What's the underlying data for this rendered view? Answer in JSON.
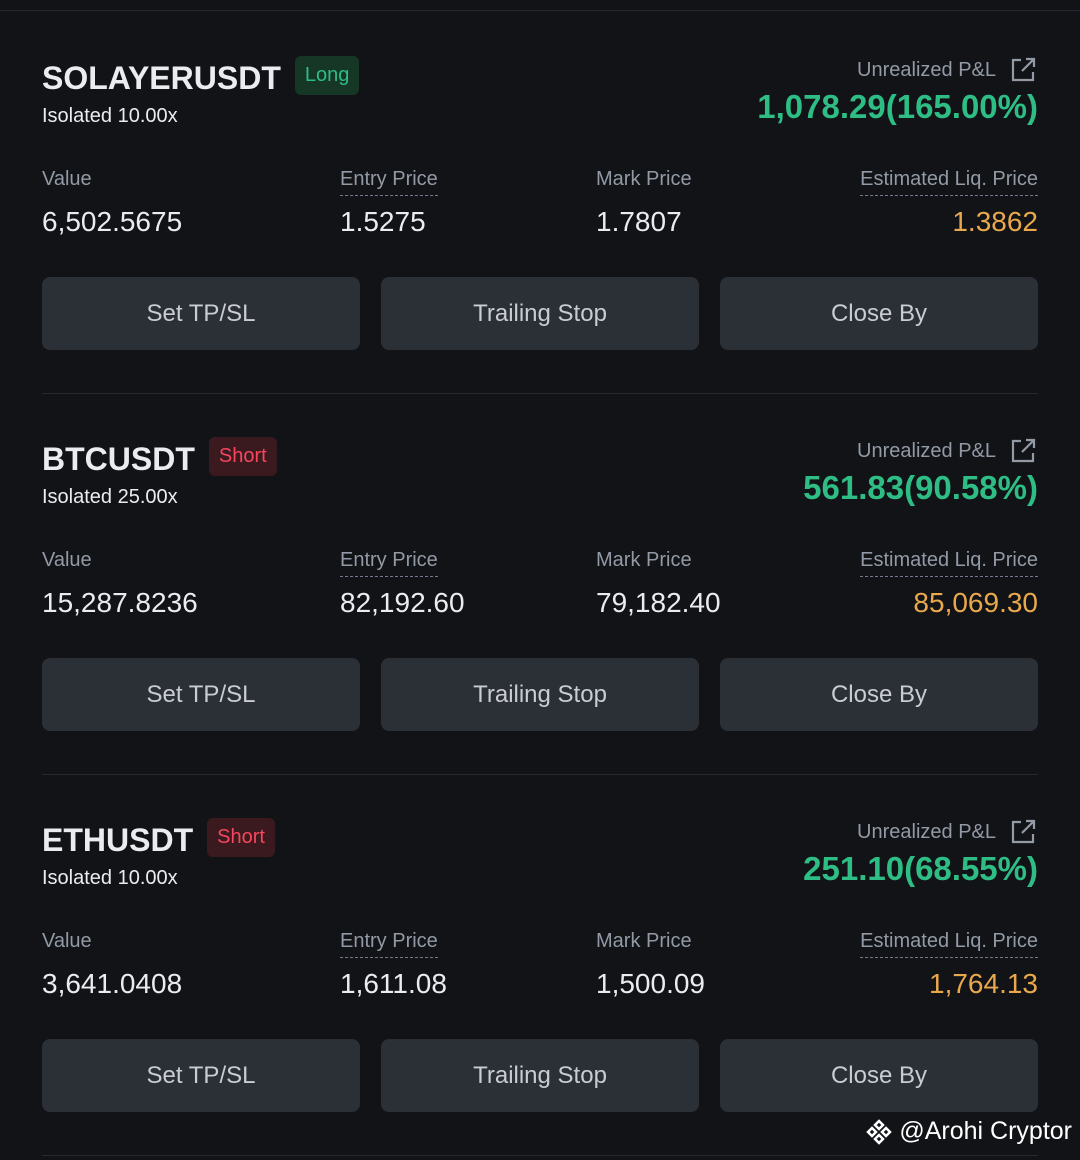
{
  "positions": [
    {
      "symbol": "SOLAYERUSDT",
      "side": "Long",
      "side_type": "long",
      "margin": "Isolated 10.00x",
      "pnl_label": "Unrealized P&L",
      "pnl": "1,078.29(165.00%)",
      "value_label": "Value",
      "value": "6,502.5675",
      "entry_label": "Entry Price",
      "entry": "1.5275",
      "mark_label": "Mark Price",
      "mark": "1.7807",
      "liq_label": "Estimated Liq. Price",
      "liq": "1.3862",
      "buttons": [
        "Set TP/SL",
        "Trailing Stop",
        "Close By"
      ]
    },
    {
      "symbol": "BTCUSDT",
      "side": "Short",
      "side_type": "short",
      "margin": "Isolated 25.00x",
      "pnl_label": "Unrealized P&L",
      "pnl": "561.83(90.58%)",
      "value_label": "Value",
      "value": "15,287.8236",
      "entry_label": "Entry Price",
      "entry": "82,192.60",
      "mark_label": "Mark Price",
      "mark": "79,182.40",
      "liq_label": "Estimated Liq. Price",
      "liq": "85,069.30",
      "buttons": [
        "Set TP/SL",
        "Trailing Stop",
        "Close By"
      ]
    },
    {
      "symbol": "ETHUSDT",
      "side": "Short",
      "side_type": "short",
      "margin": "Isolated 10.00x",
      "pnl_label": "Unrealized P&L",
      "pnl": "251.10(68.55%)",
      "value_label": "Value",
      "value": "3,641.0408",
      "entry_label": "Entry Price",
      "entry": "1,611.08",
      "mark_label": "Mark Price",
      "mark": "1,500.09",
      "liq_label": "Estimated Liq. Price",
      "liq": "1,764.13",
      "buttons": [
        "Set TP/SL",
        "Trailing Stop",
        "Close By"
      ]
    }
  ],
  "watermark": "@Arohi Cryptor"
}
